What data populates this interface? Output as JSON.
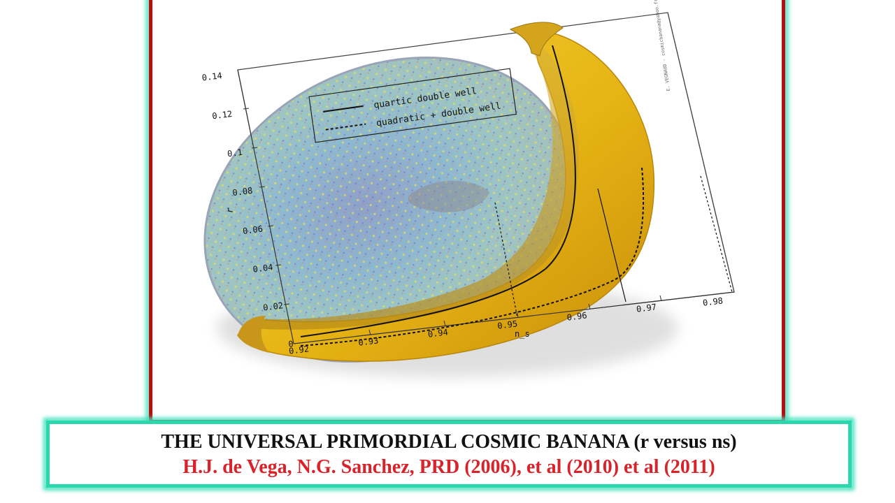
{
  "caption": {
    "line1": "THE UNIVERSAL PRIMORDIAL COSMIC BANANA  (r versus ns)",
    "line2": "H.J. de Vega, N.G. Sanchez, PRD (2006), et al (2010) et al (2011)"
  },
  "figure": {
    "credit": "E. VEGNAUD - cosmicbanana@yahoo.fr",
    "ylabel": "r",
    "xlabel": "n_s",
    "legend": [
      "quartic double well",
      "quadratic + double well"
    ]
  },
  "chart_data": {
    "type": "line",
    "xlabel": "n_s",
    "ylabel": "r",
    "xlim": [
      0.92,
      0.98
    ],
    "ylim": [
      0,
      0.14
    ],
    "x_ticks": [
      "0.92",
      "0.93",
      "0.94",
      "0.95",
      "0.96",
      "0.97",
      "0.98"
    ],
    "y_ticks": [
      "0",
      "0.02",
      "0.04",
      "0.06",
      "0.08",
      "0.1",
      "0.12",
      "0.14"
    ],
    "series": [
      {
        "name": "quartic double well",
        "style": "solid"
      },
      {
        "name": "quadratic + double well",
        "style": "dotted"
      }
    ],
    "legend_position": "top-left"
  },
  "colors": {
    "frame_red": "#b80e0e",
    "frame_teal": "#2bd8ad",
    "banana_yellow": "#e8b815",
    "caption_red": "#d8232a"
  }
}
